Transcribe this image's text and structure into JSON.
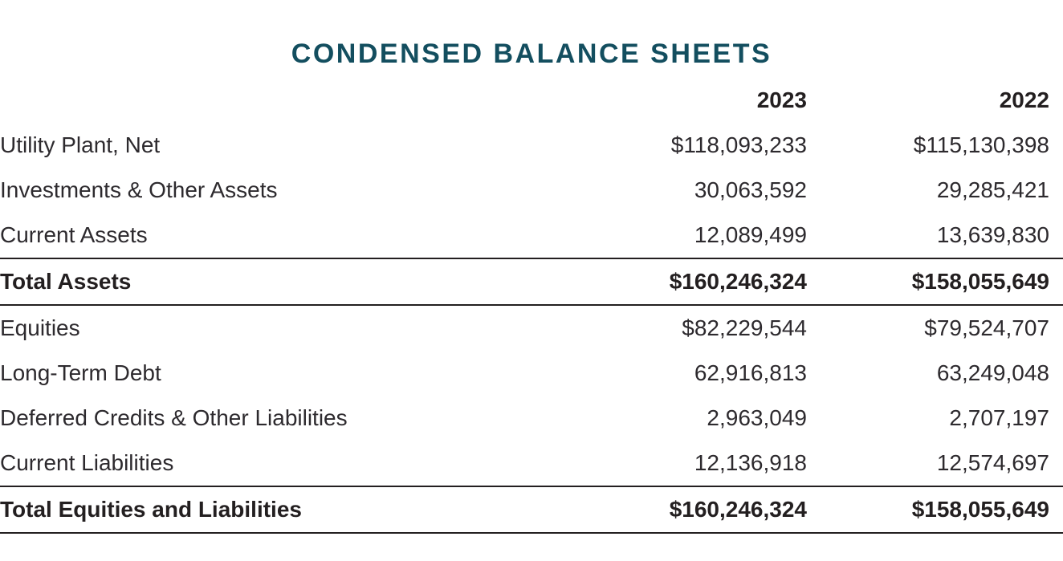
{
  "title": "CONDENSED BALANCE SHEETS",
  "colors": {
    "title_accent": "#134e5f",
    "body_text": "#2d2a2e",
    "rule_line": "#231f20"
  },
  "table": {
    "columns": [
      "2023",
      "2022"
    ],
    "rows": [
      {
        "label": "Utility Plant, Net",
        "v2023": "$118,093,233",
        "v2022": "$115,130,398",
        "total": false
      },
      {
        "label": "Investments & Other Assets",
        "v2023": "30,063,592",
        "v2022": "29,285,421",
        "total": false
      },
      {
        "label": "Current Assets",
        "v2023": "12,089,499",
        "v2022": "13,639,830",
        "total": false
      },
      {
        "label": "Total Assets",
        "v2023": "$160,246,324",
        "v2022": "$158,055,649",
        "total": true
      },
      {
        "label": "Equities",
        "v2023": "$82,229,544",
        "v2022": "$79,524,707",
        "total": false
      },
      {
        "label": "Long-Term Debt",
        "v2023": "62,916,813",
        "v2022": "63,249,048",
        "total": false
      },
      {
        "label": "Deferred Credits & Other Liabilities",
        "v2023": "2,963,049",
        "v2022": "2,707,197",
        "total": false
      },
      {
        "label": "Current Liabilities",
        "v2023": "12,136,918",
        "v2022": "12,574,697",
        "total": false
      },
      {
        "label": "Total Equities and Liabilities",
        "v2023": "$160,246,324",
        "v2022": "$158,055,649",
        "total": true
      }
    ]
  }
}
